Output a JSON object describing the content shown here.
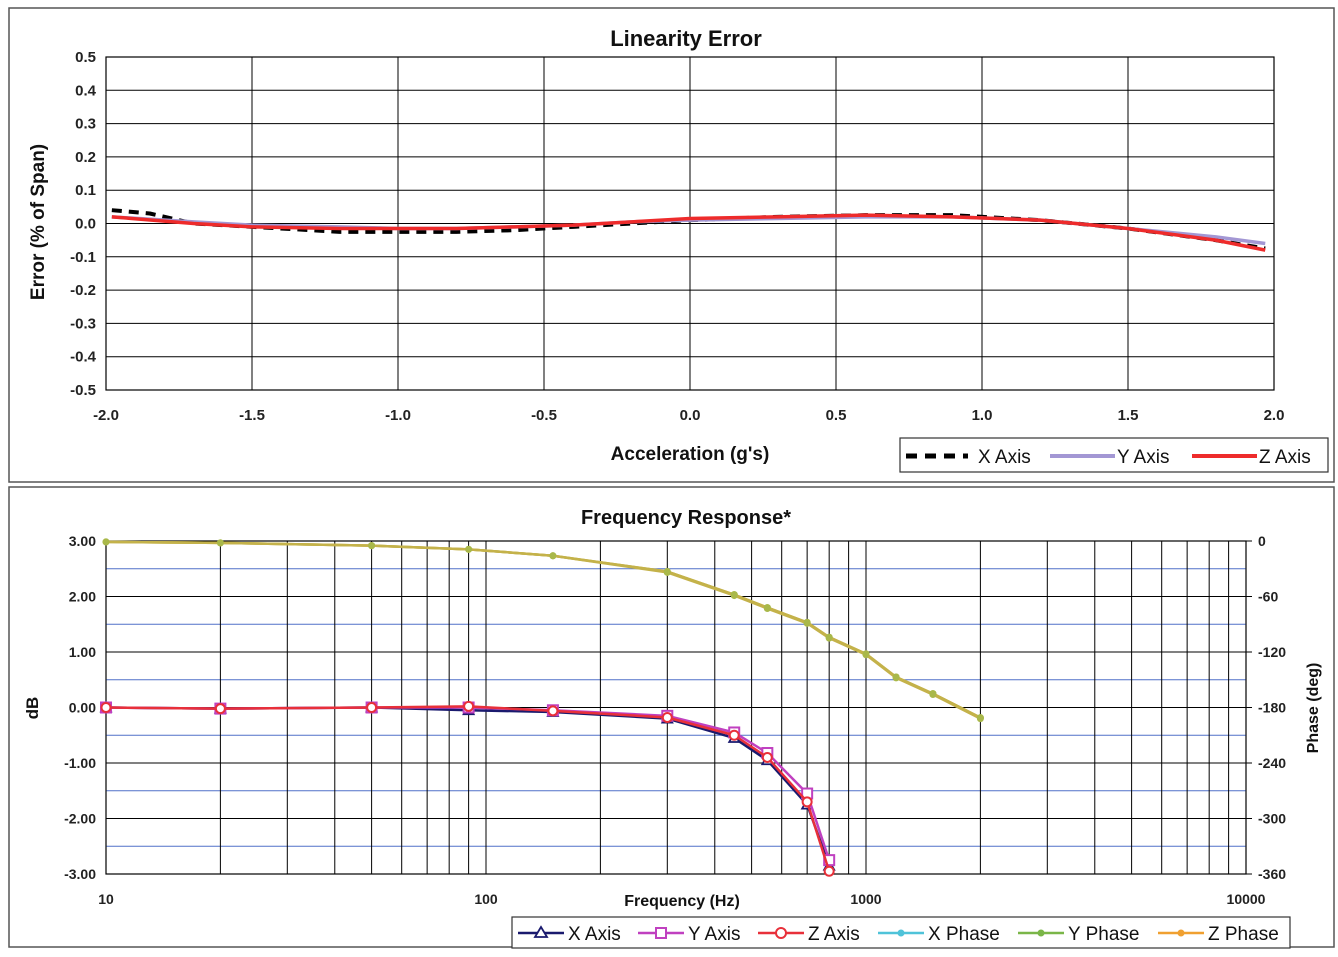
{
  "chart_data": [
    {
      "type": "line",
      "title": "Linearity Error",
      "xlabel": "Acceleration (g's)",
      "ylabel": "Error (% of Span)",
      "xlim": [
        -2.0,
        2.0
      ],
      "ylim": [
        -0.5,
        0.5
      ],
      "x_ticks": [
        "-2.0",
        "-1.5",
        "-1.0",
        "-0.5",
        "0.0",
        "0.5",
        "1.0",
        "1.5",
        "2.0"
      ],
      "y_ticks": [
        "0.5",
        "0.4",
        "0.3",
        "0.2",
        "0.1",
        "0.0",
        "-0.1",
        "-0.2",
        "-0.3",
        "-0.4",
        "-0.5"
      ],
      "grid": true,
      "legend_position": "bottom-right",
      "series": [
        {
          "name": "X Axis",
          "color": "#000000",
          "style": "dashed",
          "x": [
            -1.98,
            -1.85,
            -1.7,
            -1.5,
            -1.2,
            -1.0,
            -0.8,
            -0.6,
            -0.4,
            -0.2,
            0.0,
            0.3,
            0.6,
            0.9,
            1.2,
            1.5,
            1.8,
            1.97
          ],
          "y": [
            0.04,
            0.03,
            0.0,
            -0.01,
            -0.025,
            -0.025,
            -0.025,
            -0.02,
            -0.01,
            0.0,
            0.01,
            0.02,
            0.025,
            0.025,
            0.01,
            -0.015,
            -0.05,
            -0.075
          ]
        },
        {
          "name": "Y Axis",
          "color": "#a397d4",
          "style": "solid",
          "x": [
            -1.98,
            -1.7,
            -1.5,
            -1.2,
            -1.0,
            -0.8,
            -0.6,
            -0.4,
            -0.2,
            0.0,
            0.3,
            0.6,
            0.9,
            1.2,
            1.5,
            1.8,
            1.97
          ],
          "y": [
            0.02,
            0.005,
            -0.005,
            -0.01,
            -0.015,
            -0.015,
            -0.01,
            -0.005,
            0.005,
            0.01,
            0.015,
            0.02,
            0.02,
            0.01,
            -0.015,
            -0.04,
            -0.06
          ]
        },
        {
          "name": "Z Axis",
          "color": "#ee2b2b",
          "style": "solid",
          "x": [
            -1.98,
            -1.7,
            -1.5,
            -1.2,
            -1.0,
            -0.8,
            -0.6,
            -0.4,
            -0.2,
            0.0,
            0.3,
            0.6,
            0.9,
            1.2,
            1.5,
            1.8,
            1.97
          ],
          "y": [
            0.02,
            0.0,
            -0.01,
            -0.015,
            -0.015,
            -0.015,
            -0.01,
            -0.005,
            0.005,
            0.015,
            0.02,
            0.025,
            0.02,
            0.01,
            -0.015,
            -0.05,
            -0.08
          ]
        }
      ]
    },
    {
      "type": "line",
      "title": "Frequency Response*",
      "xlabel": "Frequency (Hz)",
      "ylabel": "dB",
      "y2label": "Phase (deg)",
      "x_scale": "log",
      "xlim": [
        10,
        10000
      ],
      "ylim": [
        -3.0,
        3.0
      ],
      "y2lim": [
        -360,
        0
      ],
      "x_ticks": [
        "10",
        "100",
        "1000",
        "10000"
      ],
      "y_ticks": [
        "3.00",
        "2.00",
        "1.00",
        "0.00",
        "-1.00",
        "-2.00",
        "-3.00"
      ],
      "y2_ticks": [
        "0",
        "-60",
        "-120",
        "-180",
        "-240",
        "-300",
        "-360"
      ],
      "grid": true,
      "legend_position": "bottom-right",
      "series": [
        {
          "name": "X Axis",
          "axis": "left",
          "color": "#1a1a6e",
          "marker": "triangle",
          "x": [
            10,
            20,
            50,
            90,
            150,
            300,
            450,
            550,
            700,
            800
          ],
          "y": [
            0.0,
            -0.02,
            0.0,
            -0.05,
            -0.08,
            -0.2,
            -0.55,
            -0.95,
            -1.75,
            -2.85
          ]
        },
        {
          "name": "Y Axis",
          "axis": "left",
          "color": "#c040c0",
          "marker": "square",
          "x": [
            10,
            20,
            50,
            90,
            150,
            300,
            450,
            550,
            700,
            800
          ],
          "y": [
            0.0,
            -0.02,
            0.0,
            0.0,
            -0.05,
            -0.15,
            -0.45,
            -0.82,
            -1.55,
            -2.75
          ]
        },
        {
          "name": "Z Axis",
          "axis": "left",
          "color": "#e8303a",
          "marker": "circle",
          "x": [
            10,
            20,
            50,
            90,
            150,
            300,
            450,
            550,
            700,
            800
          ],
          "y": [
            0.0,
            -0.02,
            0.0,
            0.02,
            -0.06,
            -0.18,
            -0.5,
            -0.9,
            -1.7,
            -2.95
          ]
        },
        {
          "name": "X Phase",
          "axis": "right",
          "color": "#4fc3d9",
          "marker": "dot",
          "x": [
            10,
            20,
            50,
            90,
            150,
            300,
            450,
            550,
            700,
            800,
            1000,
            1200,
            1500,
            2000
          ],
          "y": [
            -1,
            -2,
            -5,
            -9,
            -16,
            -33,
            -58,
            -72,
            -88,
            -104,
            -122,
            -147,
            -165,
            -191
          ]
        },
        {
          "name": "Y Phase",
          "axis": "right",
          "color": "#7ab648",
          "marker": "dot",
          "x": [
            10,
            20,
            50,
            90,
            150,
            300,
            450,
            550,
            700,
            800,
            1000,
            1200,
            1500,
            2000
          ],
          "y": [
            -1,
            -2,
            -5,
            -9,
            -16,
            -34,
            -59,
            -73,
            -89,
            -105,
            -123,
            -148,
            -166,
            -192
          ]
        },
        {
          "name": "Z Phase",
          "axis": "right",
          "color": "#f0a030",
          "marker": "dot",
          "x": [
            10,
            20,
            50,
            90,
            150,
            300,
            450,
            550,
            700,
            800,
            1000,
            1200,
            1500,
            2000
          ],
          "y": [
            -1,
            -2,
            -5,
            -9,
            -16,
            -33,
            -58,
            -72,
            -88,
            -104,
            -122,
            -147,
            -165,
            -191
          ]
        }
      ]
    }
  ]
}
